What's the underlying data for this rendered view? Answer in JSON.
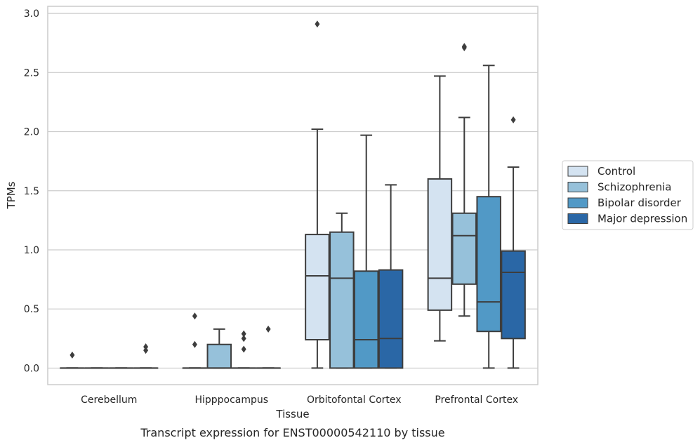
{
  "chart_data": {
    "type": "box",
    "title": "",
    "caption": "Transcript expression for ENST00000542110 by tissue",
    "xlabel": "Tissue",
    "ylabel": "TPMs",
    "ylim": [
      -0.14,
      3.06
    ],
    "yticks": [
      "0.0",
      "0.5",
      "1.0",
      "1.5",
      "2.0",
      "2.5",
      "3.0"
    ],
    "ytick_values": [
      0,
      0.5,
      1.0,
      1.5,
      2.0,
      2.5,
      3.0
    ],
    "grid": "horizontal",
    "legend_position": "right",
    "categories": [
      "Cerebellum",
      "Hipppocampus",
      "Orbitofontal Cortex",
      "Prefrontal Cortex"
    ],
    "colors": {
      "Control": "#d4e3f1",
      "Schizophrenia": "#96c1da",
      "Bipolar disorder": "#5199c6",
      "Major depression": "#2a67a6",
      "box_edge": "#3d3d3d",
      "grid": "#cccccc"
    },
    "series": [
      {
        "name": "Control",
        "boxes": [
          {
            "min": 0,
            "q1": 0,
            "median": 0,
            "q3": 0,
            "max": 0,
            "outliers": [
              0.11
            ]
          },
          {
            "min": 0,
            "q1": 0,
            "median": 0,
            "q3": 0,
            "max": 0,
            "outliers": [
              0.44,
              0.2
            ]
          },
          {
            "min": 0,
            "q1": 0.24,
            "median": 0.78,
            "q3": 1.13,
            "max": 2.02,
            "outliers": [
              2.91
            ]
          },
          {
            "min": 0.23,
            "q1": 0.49,
            "median": 0.76,
            "q3": 1.6,
            "max": 2.47,
            "outliers": []
          }
        ]
      },
      {
        "name": "Schizophrenia",
        "boxes": [
          {
            "min": 0,
            "q1": 0,
            "median": 0,
            "q3": 0,
            "max": 0,
            "outliers": []
          },
          {
            "min": 0,
            "q1": 0,
            "median": 0,
            "q3": 0.2,
            "max": 0.33,
            "outliers": []
          },
          {
            "min": 0,
            "q1": 0,
            "median": 0.76,
            "q3": 1.15,
            "max": 1.31,
            "outliers": []
          },
          {
            "min": 0.44,
            "q1": 0.71,
            "median": 1.12,
            "q3": 1.31,
            "max": 2.12,
            "outliers": [
              2.71,
              2.72
            ]
          }
        ]
      },
      {
        "name": "Bipolar disorder",
        "boxes": [
          {
            "min": 0,
            "q1": 0,
            "median": 0,
            "q3": 0,
            "max": 0,
            "outliers": []
          },
          {
            "min": 0,
            "q1": 0,
            "median": 0,
            "q3": 0,
            "max": 0,
            "outliers": [
              0.29,
              0.25,
              0.16
            ]
          },
          {
            "min": 0,
            "q1": 0,
            "median": 0.24,
            "q3": 0.82,
            "max": 1.97,
            "outliers": []
          },
          {
            "min": 0,
            "q1": 0.31,
            "median": 0.56,
            "q3": 1.45,
            "max": 2.56,
            "outliers": []
          }
        ]
      },
      {
        "name": "Major depression",
        "boxes": [
          {
            "min": 0,
            "q1": 0,
            "median": 0,
            "q3": 0,
            "max": 0,
            "outliers": [
              0.18,
              0.15
            ]
          },
          {
            "min": 0,
            "q1": 0,
            "median": 0,
            "q3": 0,
            "max": 0,
            "outliers": [
              0.33
            ]
          },
          {
            "min": 0,
            "q1": 0,
            "median": 0.25,
            "q3": 0.83,
            "max": 1.55,
            "outliers": []
          },
          {
            "min": 0,
            "q1": 0.25,
            "median": 0.81,
            "q3": 0.99,
            "max": 1.7,
            "outliers": [
              2.1
            ]
          }
        ]
      }
    ]
  }
}
